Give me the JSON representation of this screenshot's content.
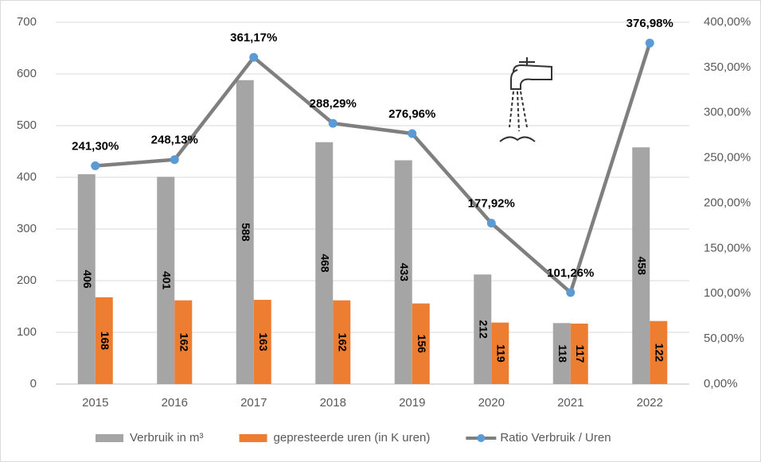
{
  "chart_data": {
    "type": "bar-line",
    "categories": [
      "2015",
      "2016",
      "2017",
      "2018",
      "2019",
      "2020",
      "2021",
      "2022"
    ],
    "series": [
      {
        "name": "Verbruik in m³",
        "color": "#a5a5a5",
        "type": "bar",
        "values": [
          406,
          401,
          588,
          468,
          433,
          212,
          118,
          458
        ]
      },
      {
        "name": "gepresteerde uren (in K uren)",
        "color": "#ed7d31",
        "type": "bar",
        "values": [
          168,
          162,
          163,
          162,
          156,
          119,
          117,
          122
        ]
      },
      {
        "name": "Ratio Verbruik / Uren",
        "color": "#7f7f7f",
        "marker_color": "#5b9bd5",
        "type": "line",
        "axis": "y2",
        "values": [
          241.3,
          248.13,
          361.17,
          288.29,
          276.96,
          177.92,
          101.26,
          376.98
        ],
        "value_labels": [
          "241,30%",
          "248,13%",
          "361,17%",
          "288,29%",
          "276,96%",
          "177,92%",
          "101,26%",
          "376,98%"
        ]
      }
    ],
    "ylim": [
      0,
      700
    ],
    "yticks": [
      0,
      100,
      200,
      300,
      400,
      500,
      600,
      700
    ],
    "y2lim": [
      0,
      400
    ],
    "y2ticks": [
      {
        "value": 0,
        "label": "0,00%"
      },
      {
        "value": 50,
        "label": "50,00%"
      },
      {
        "value": 100,
        "label": "100,00%"
      },
      {
        "value": 150,
        "label": "150,00%"
      },
      {
        "value": 200,
        "label": "200,00%"
      },
      {
        "value": 250,
        "label": "250,00%"
      },
      {
        "value": 300,
        "label": "300,00%"
      },
      {
        "value": 350,
        "label": "350,00%"
      },
      {
        "value": 400,
        "label": "400,00%"
      }
    ],
    "grid": true,
    "legend": "bottom"
  }
}
